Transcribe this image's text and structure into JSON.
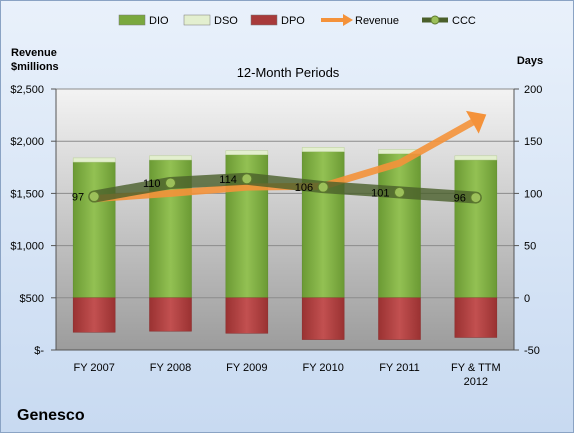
{
  "company": "Genesco",
  "chart_data": {
    "type": "bar",
    "title": "12-Month Periods",
    "ylabel_left": "Revenue\n$millions",
    "ylabel_right": "Days",
    "categories": [
      "FY 2007",
      "FY 2008",
      "FY 2009",
      "FY 2010",
      "FY 2011",
      "FY & TTM\n2012"
    ],
    "left_axis": {
      "ylim": [
        0,
        2500
      ],
      "ticks": [
        "$-",
        "$500",
        "$1,000",
        "$1,500",
        "$2,000",
        "$2,500"
      ],
      "values": [
        0,
        500,
        1000,
        1500,
        2000,
        2500
      ]
    },
    "right_axis": {
      "ylim": [
        -50,
        200
      ],
      "ticks": [
        "-50",
        "0",
        "50",
        "100",
        "150",
        "200"
      ],
      "values": [
        -50,
        0,
        50,
        100,
        150,
        200
      ]
    },
    "series": [
      {
        "name": "DIO",
        "type": "stacked-bar",
        "axis": "right",
        "color": "#7aa83e",
        "values": [
          130,
          132,
          137,
          140,
          138,
          132
        ]
      },
      {
        "name": "DSO",
        "type": "stacked-bar",
        "axis": "right",
        "color": "#e3efcf",
        "values": [
          4,
          4,
          4,
          4,
          4,
          4
        ]
      },
      {
        "name": "DPO",
        "type": "negative-bar",
        "axis": "right",
        "color": "#a83a3a",
        "values": [
          -33,
          -32,
          -34,
          -40,
          -40,
          -38
        ]
      },
      {
        "name": "Revenue",
        "type": "arrow",
        "axis": "left",
        "color": "#f4923a",
        "values": [
          1450,
          1500,
          1560,
          1570,
          1790,
          2200
        ]
      },
      {
        "name": "CCC",
        "type": "line",
        "axis": "right",
        "color": "#556b2f",
        "values": [
          97,
          110,
          114,
          106,
          101,
          96
        ],
        "labels": [
          "97",
          "110",
          "114",
          "106",
          "101",
          "96"
        ]
      }
    ],
    "legend_position": "top",
    "grid": true
  }
}
